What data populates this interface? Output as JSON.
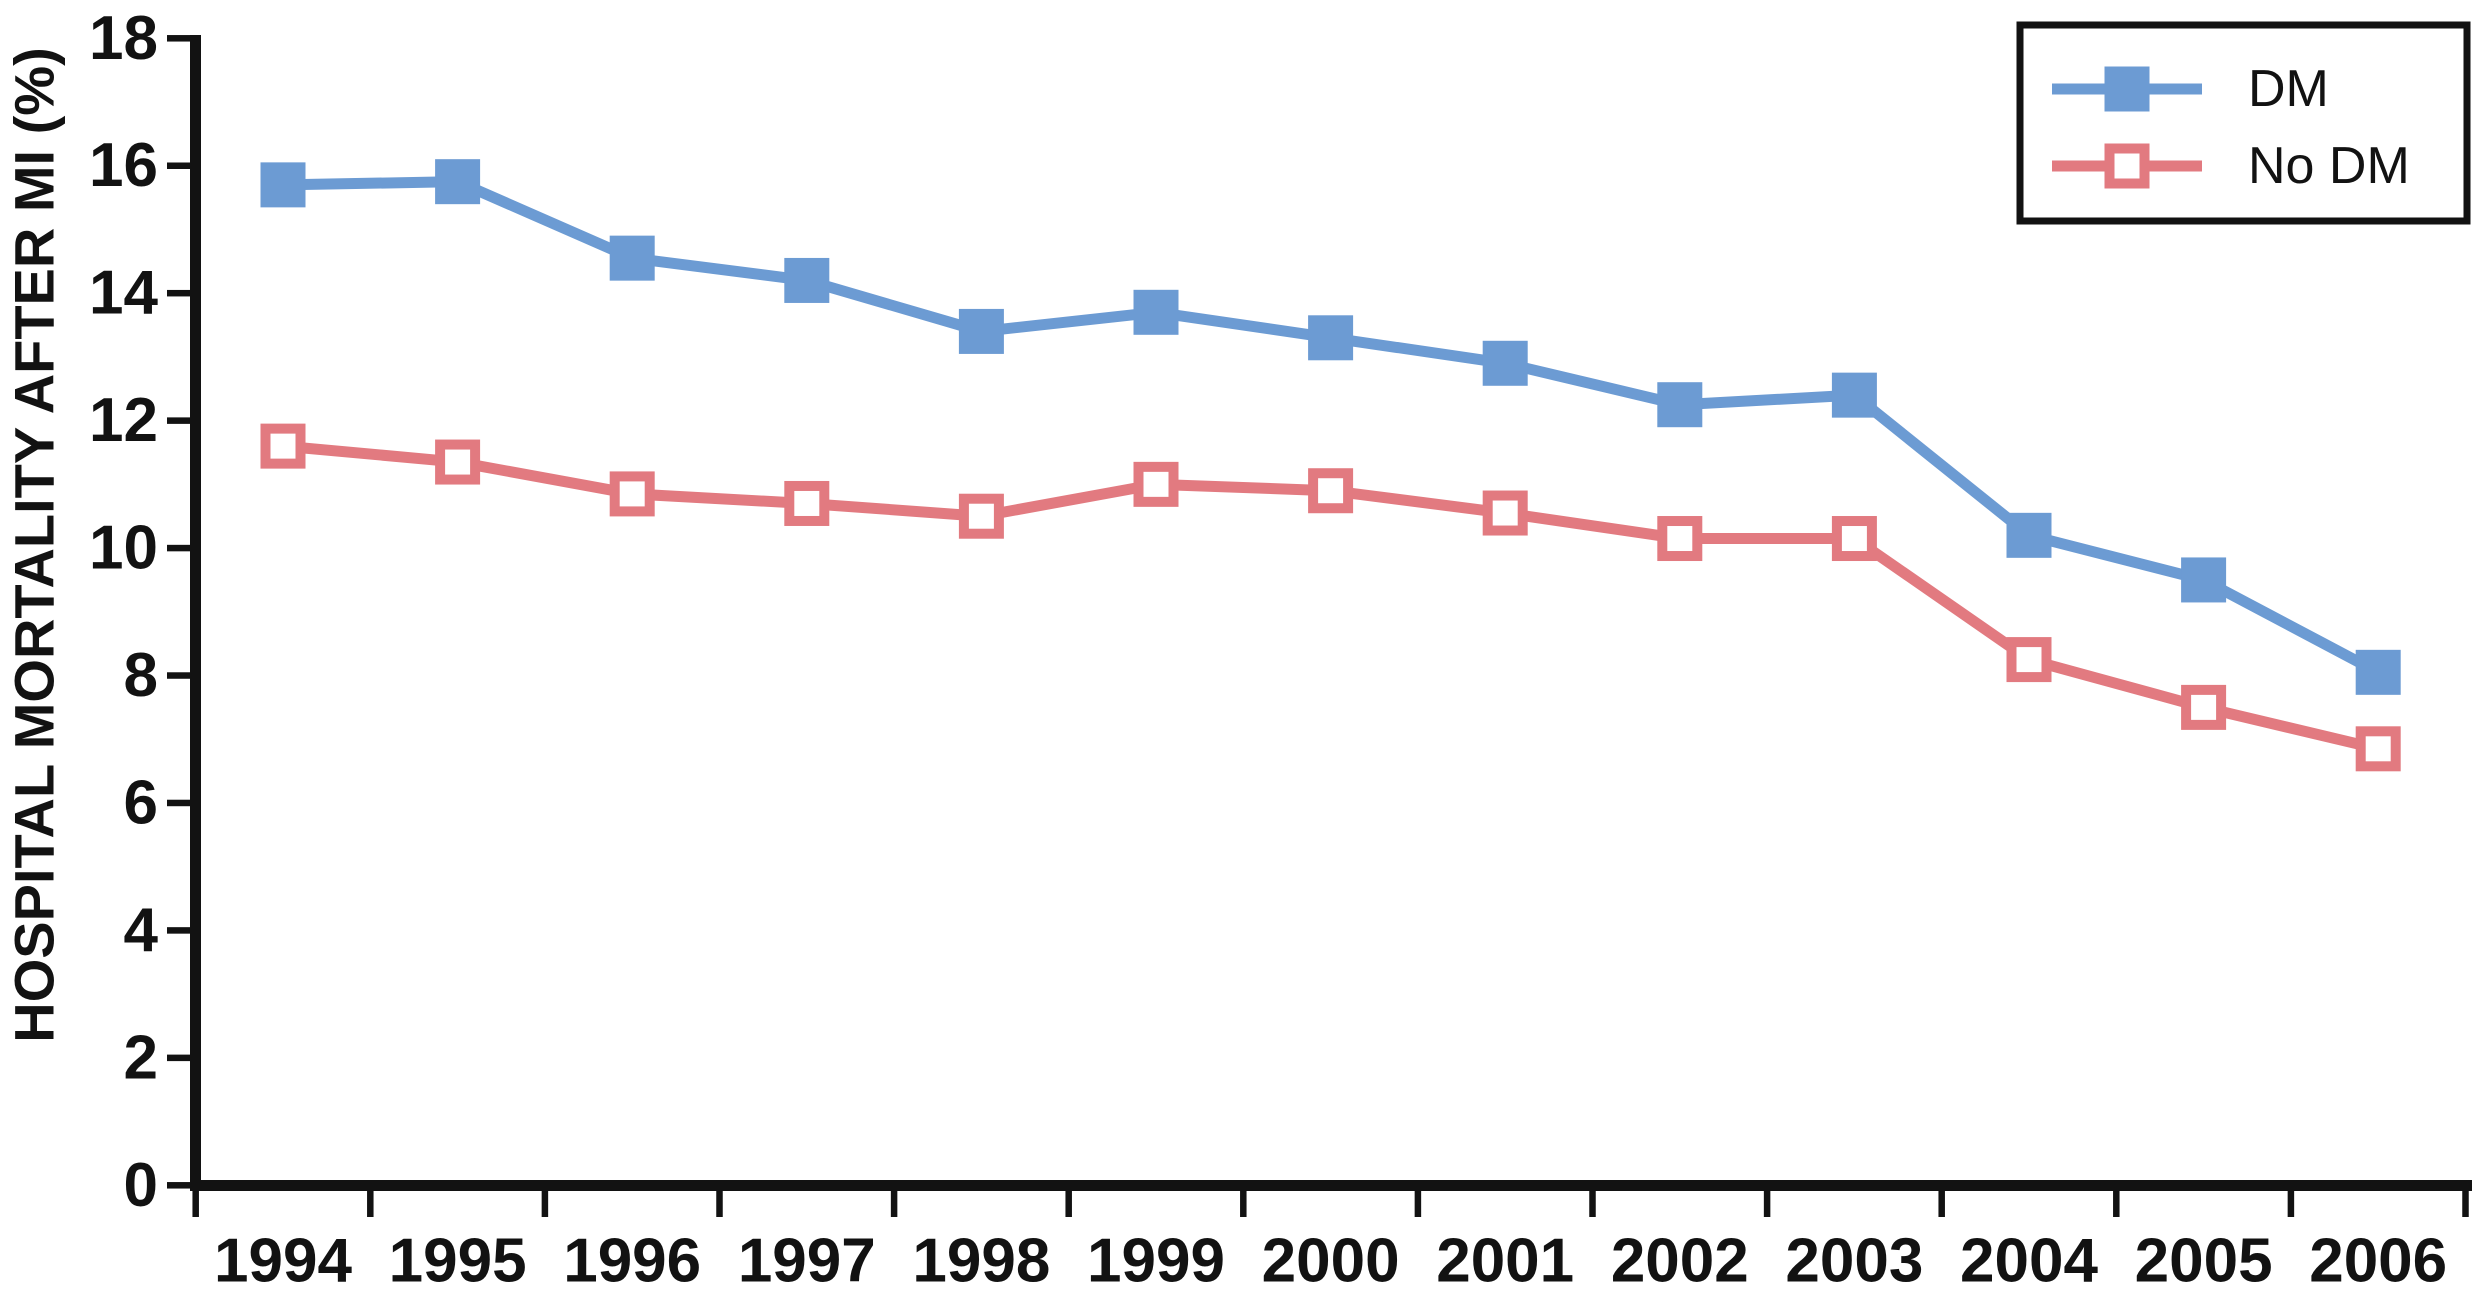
{
  "chart_data": {
    "type": "line",
    "title": "",
    "xlabel": "",
    "ylabel": "HOSPITAL MORTALITY AFTER MI (%)",
    "ylim": [
      0,
      18
    ],
    "y_ticks": [
      0,
      2,
      4,
      6,
      8,
      10,
      12,
      14,
      16,
      18
    ],
    "grid": false,
    "legend_position": "top-right",
    "categories": [
      "1994",
      "1995",
      "1996",
      "1997",
      "1998",
      "1999",
      "2000",
      "2001",
      "2002",
      "2003",
      "2004",
      "2005",
      "2006"
    ],
    "series": [
      {
        "name": "DM",
        "marker": "filled-square",
        "color": "#6c9bd3",
        "values": [
          15.7,
          15.75,
          14.55,
          14.2,
          13.4,
          13.7,
          13.3,
          12.9,
          12.25,
          12.4,
          10.2,
          9.5,
          8.05
        ]
      },
      {
        "name": "No DM",
        "marker": "open-square",
        "color": "#e27a80",
        "values": [
          11.6,
          11.35,
          10.85,
          10.7,
          10.5,
          11.0,
          10.9,
          10.55,
          10.15,
          10.15,
          8.25,
          7.5,
          6.85
        ]
      }
    ],
    "axis_color": "#121212",
    "marker_size": 45,
    "line_width": 11
  }
}
